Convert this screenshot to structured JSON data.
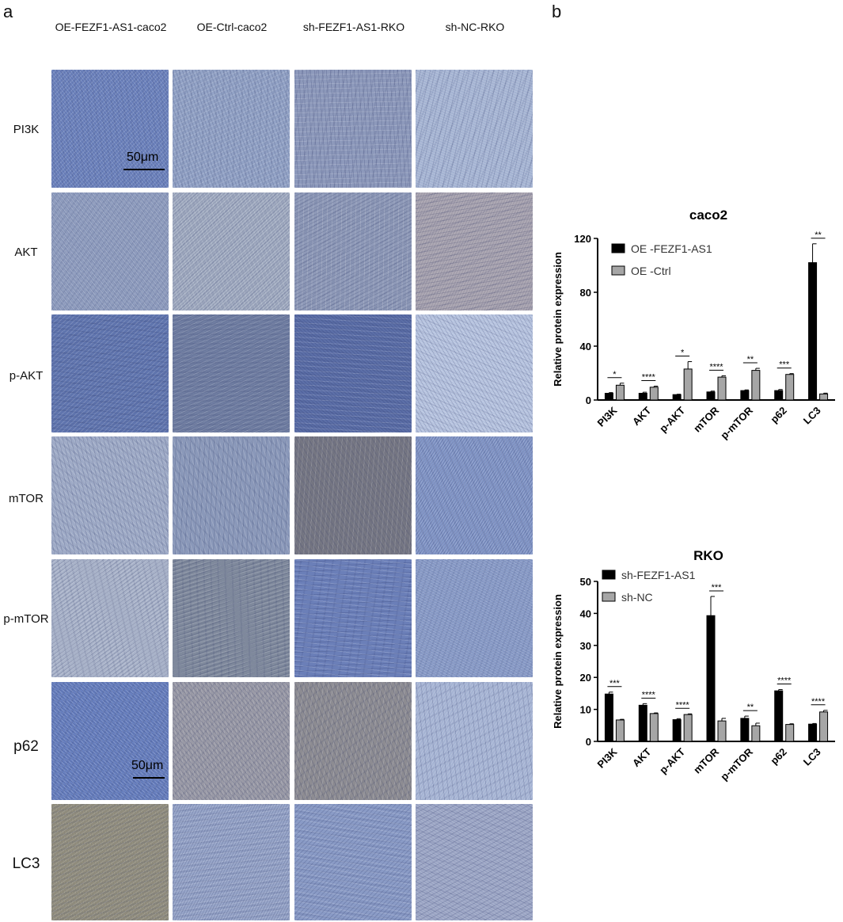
{
  "panel_a_label": "a",
  "panel_b_label": "b",
  "columns": [
    "OE-FEZF1-AS1-caco2",
    "OE-Ctrl-caco2",
    "sh-FEZF1-AS1-RKO",
    "sh-NC-RKO"
  ],
  "rows": [
    "PI3K",
    "AKT",
    "p-AKT",
    "mTOR",
    "p-mTOR",
    "p62",
    "LC3"
  ],
  "scale_bar": "50μm",
  "colors": {
    "bar_primary": "#000000",
    "bar_secondary": "#a6a6a6",
    "tissue_base": "#8a9bc4",
    "tissue_brown": "#9a8a6a"
  },
  "chart_data": [
    {
      "type": "bar",
      "title": "caco2",
      "ylabel": "Relative protein expression",
      "ylim": [
        0,
        120
      ],
      "yticks": [
        0,
        40,
        80,
        120
      ],
      "categories": [
        "PI3K",
        "AKT",
        "p-AKT",
        "mTOR",
        "p-mTOR",
        "p62",
        "LC3"
      ],
      "series": [
        {
          "name": "OE -FEZF1-AS1",
          "values": [
            5,
            5,
            4,
            6,
            7,
            7,
            102
          ],
          "errors": [
            0.5,
            0.8,
            0.3,
            0.6,
            0.5,
            0.8,
            14
          ]
        },
        {
          "name": "OE -Ctrl",
          "values": [
            11,
            9.5,
            23,
            17,
            22,
            19,
            4.5
          ],
          "errors": [
            1.5,
            0.8,
            5.5,
            1,
            1.5,
            0.6,
            0.6
          ]
        }
      ],
      "significance": [
        "*",
        "****",
        "*",
        "****",
        "**",
        "***",
        "**"
      ],
      "legend_position": "top-left"
    },
    {
      "type": "bar",
      "title": "RKO",
      "ylabel": "Relative protein expression",
      "ylim": [
        0,
        50
      ],
      "yticks": [
        0,
        10,
        20,
        30,
        40,
        50
      ],
      "categories": [
        "PI3K",
        "AKT",
        "p-AKT",
        "mTOR",
        "p-mTOR",
        "p62",
        "LC3"
      ],
      "series": [
        {
          "name": "sh-FEZF1-AS1",
          "values": [
            14.8,
            11.3,
            6.8,
            39.3,
            7.2,
            15.8,
            5.4
          ],
          "errors": [
            0.6,
            0.5,
            0.3,
            6,
            0.7,
            0.4,
            0.2
          ]
        },
        {
          "name": "sh-NC",
          "values": [
            6.7,
            8.7,
            8.4,
            6.4,
            4.9,
            5.3,
            9.2
          ],
          "errors": [
            0.2,
            0.2,
            0.2,
            0.8,
            0.8,
            0.2,
            0.5
          ]
        }
      ],
      "significance": [
        "***",
        "****",
        "****",
        "***",
        "**",
        "****",
        "****"
      ],
      "legend_position": "top-left"
    }
  ]
}
